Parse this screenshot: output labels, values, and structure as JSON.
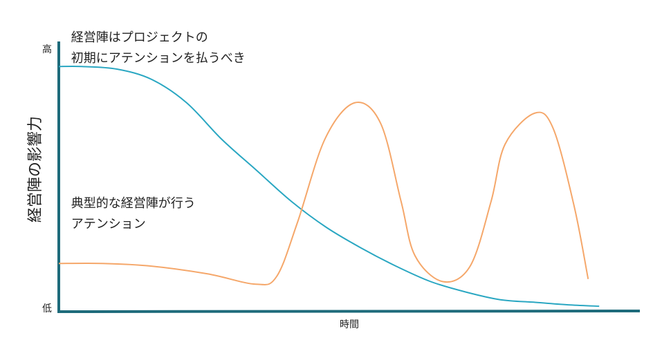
{
  "chart_data": {
    "type": "line",
    "x_label": "時間",
    "y_label": "経営陣の影響力",
    "xlim": [
      0,
      100
    ],
    "ylim": [
      0,
      100
    ],
    "yticks": [
      {
        "value": 0,
        "label": "低"
      },
      {
        "value": 100,
        "label": "高"
      }
    ],
    "axis_color": "#1e6b7b",
    "series": [
      {
        "color": "#2aa7c2",
        "x": [
          0,
          4,
          10,
          16,
          22,
          28,
          34,
          40,
          46,
          52,
          58,
          64,
          70,
          76,
          82,
          88,
          93
        ],
        "values": [
          93,
          93,
          92,
          88,
          79,
          65,
          53,
          41,
          31,
          23,
          16,
          10,
          6,
          3,
          2,
          1,
          0.5
        ]
      },
      {
        "color": "#f5a76a",
        "x": [
          0,
          7.5,
          15.8,
          25.6,
          33.9,
          37.5,
          41.1,
          45.8,
          50.9,
          55.4,
          58.9,
          61.3,
          66.1,
          70.8,
          74.4,
          76.8,
          81.9,
          85.1,
          88.7,
          91.1
        ],
        "values": [
          17,
          17,
          16,
          13,
          9,
          12,
          33,
          65,
          79,
          71,
          41,
          20,
          10,
          16,
          41,
          63,
          75,
          69,
          39,
          11
        ]
      }
    ],
    "annotations": [
      {
        "lines": [
          "経営陣はプロジェクトの",
          "初期にアテンションを払うべき"
        ],
        "x": 2,
        "y": 104
      },
      {
        "lines": [
          "典型的な経営陣が行う",
          "アテンション"
        ],
        "x": 2,
        "y": 40
      }
    ]
  }
}
